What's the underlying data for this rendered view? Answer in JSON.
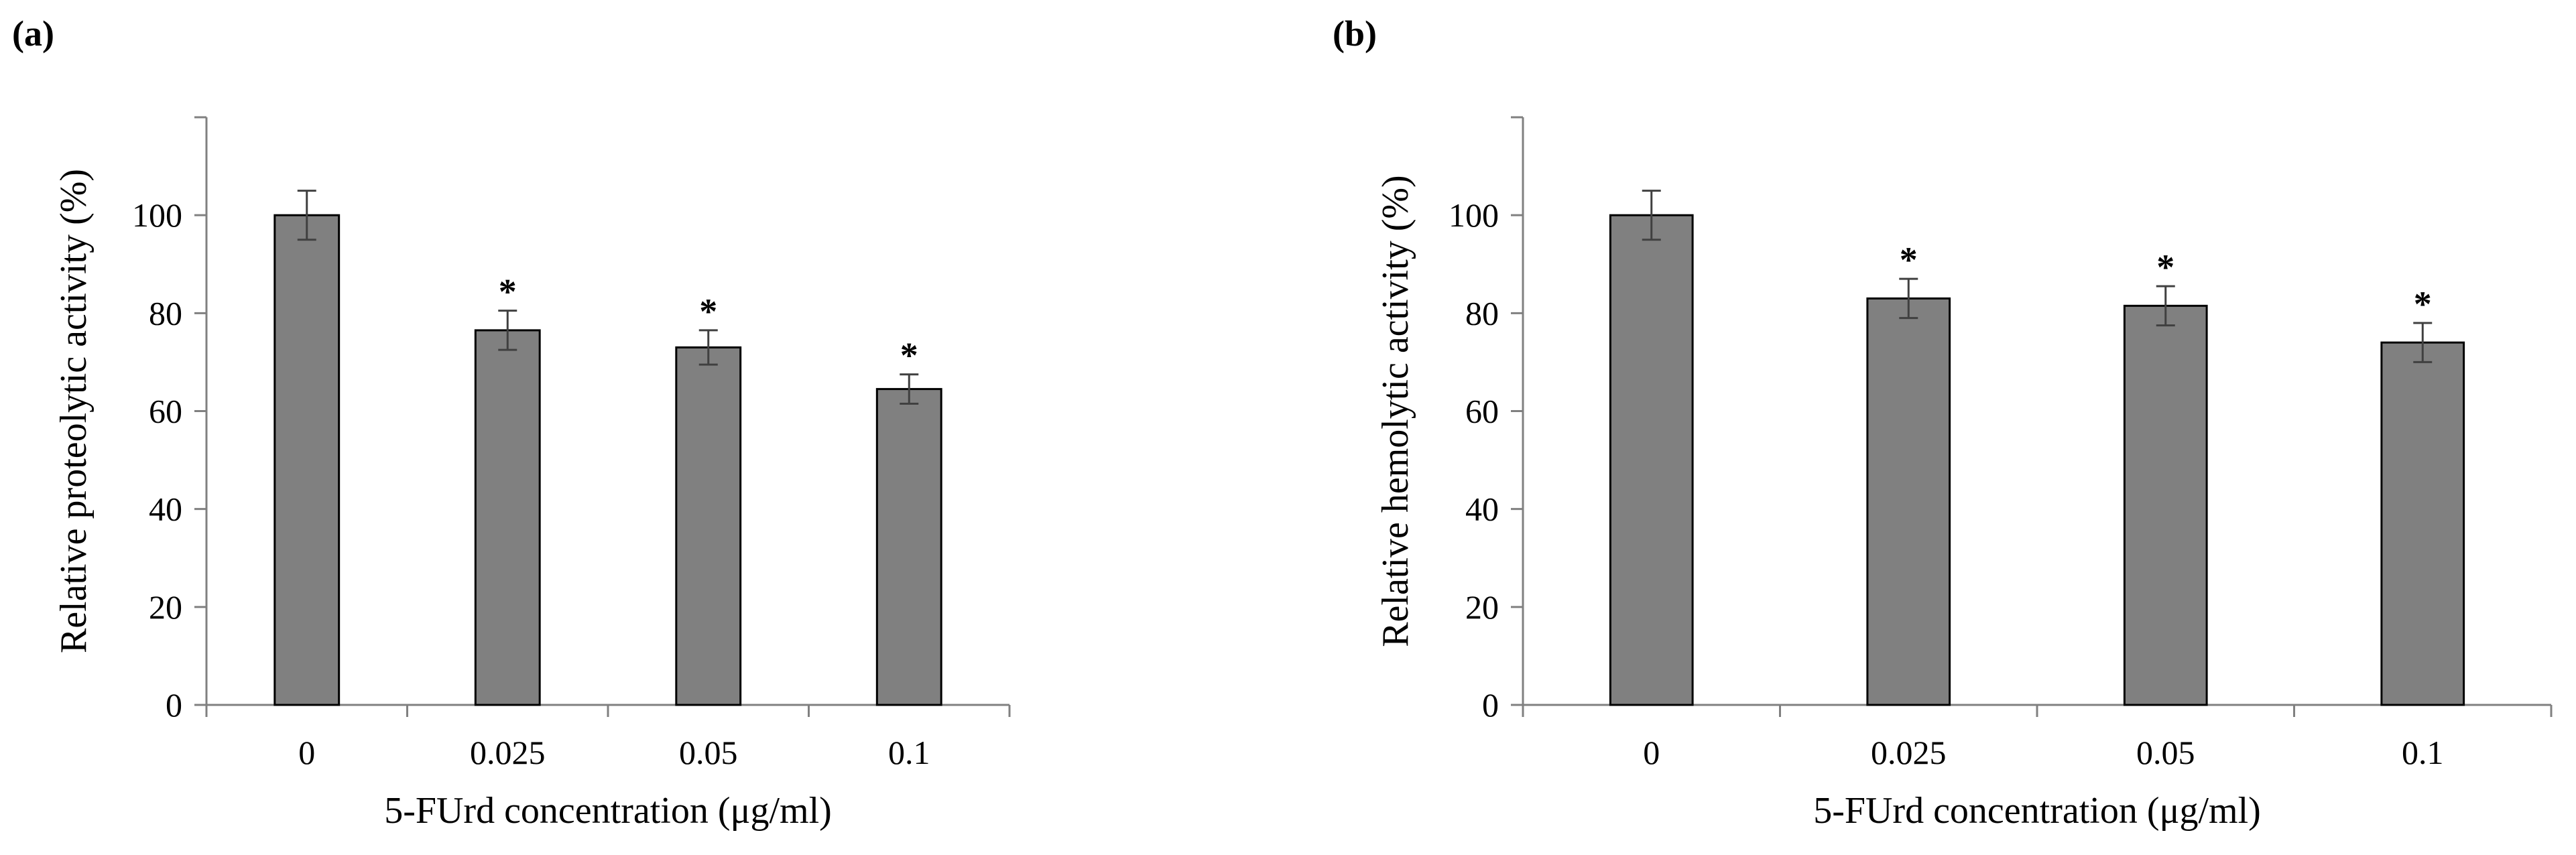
{
  "colors": {
    "bar": "#808080",
    "axis": "#808080",
    "stroke": "#000000",
    "error": "#404040"
  },
  "chart_data": [
    {
      "panel_label": "(a)",
      "type": "bar",
      "categories": [
        "0",
        "0.025",
        "0.05",
        "0.1"
      ],
      "values": [
        100,
        76.5,
        73,
        64.5
      ],
      "errors": [
        5,
        4,
        3.5,
        3
      ],
      "significance": [
        "",
        "*",
        "*",
        "*"
      ],
      "ylim": [
        0,
        120
      ],
      "yticks": [
        0,
        20,
        40,
        60,
        80,
        100
      ],
      "xlabel": "5-FUrd concentration (μg/ml)",
      "ylabel": "Relative proteolytic activity (%)",
      "title": ""
    },
    {
      "panel_label": "(b)",
      "type": "bar",
      "categories": [
        "0",
        "0.025",
        "0.05",
        "0.1"
      ],
      "values": [
        100,
        83,
        81.5,
        74
      ],
      "errors": [
        5,
        4,
        4,
        4
      ],
      "significance": [
        "",
        "*",
        "*",
        "*"
      ],
      "ylim": [
        0,
        120
      ],
      "yticks": [
        0,
        20,
        40,
        60,
        80,
        100
      ],
      "xlabel": "5-FUrd concentration (μg/ml)",
      "ylabel": "Relative hemolytic activity (%)",
      "title": ""
    }
  ]
}
